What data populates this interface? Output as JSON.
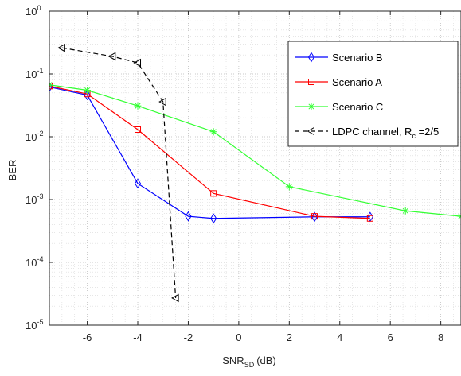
{
  "chart_data": {
    "type": "line",
    "xlabel": "SNR",
    "xlabel_sub": "SD",
    "xlabel_unit": "(dB)",
    "ylabel": "BER",
    "xlim": [
      -7.5,
      8.8
    ],
    "ylim": [
      1e-05,
      1
    ],
    "yscale": "log",
    "grid": true,
    "minor_grid": true,
    "legend_position": "top-right",
    "x_ticks": [
      -6,
      -4,
      -2,
      0,
      2,
      4,
      6,
      8
    ],
    "x_tick_labels": [
      "-6",
      "-4",
      "-2",
      "0",
      "2",
      "4",
      "6",
      "8"
    ],
    "y_tick_labels": [
      {
        "base": "10",
        "exp": "0",
        "value": 1
      },
      {
        "base": "10",
        "exp": "-1",
        "value": 0.1
      },
      {
        "base": "10",
        "exp": "-2",
        "value": 0.01
      },
      {
        "base": "10",
        "exp": "-3",
        "value": 0.001
      },
      {
        "base": "10",
        "exp": "-4",
        "value": 0.0001
      },
      {
        "base": "10",
        "exp": "-5",
        "value": 1e-05
      }
    ],
    "series": [
      {
        "name": "Scenario B",
        "color": "#0000ff",
        "marker": "diamond",
        "linestyle": "solid",
        "x": [
          -7.5,
          -6,
          -4,
          -2,
          -1,
          3,
          5.2
        ],
        "y": [
          0.062,
          0.046,
          0.0018,
          0.00054,
          0.0005,
          0.00053,
          0.00053
        ]
      },
      {
        "name": "Scenario A",
        "color": "#ff0000",
        "marker": "square",
        "linestyle": "solid",
        "x": [
          -7.5,
          -6,
          -4,
          -1,
          3,
          5.2
        ],
        "y": [
          0.064,
          0.048,
          0.013,
          0.00125,
          0.00054,
          0.0005
        ]
      },
      {
        "name": "Scenario C",
        "color": "#33ff33",
        "marker": "asterisk",
        "linestyle": "solid",
        "x": [
          -7.5,
          -6,
          -4,
          -1,
          2,
          6.6,
          8.8
        ],
        "y": [
          0.067,
          0.055,
          0.031,
          0.012,
          0.0016,
          0.00066,
          0.00054
        ]
      },
      {
        "name": "LDPC channel, R",
        "name_sub": "c",
        "name_suffix": " =2/5",
        "color": "#000000",
        "marker": "triangle-left",
        "linestyle": "dashed",
        "x": [
          -7,
          -5,
          -4,
          -3,
          -2.5
        ],
        "y": [
          0.26,
          0.19,
          0.15,
          0.036,
          2.7e-05
        ]
      }
    ]
  }
}
